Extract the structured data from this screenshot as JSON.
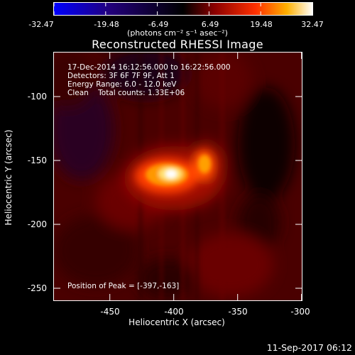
{
  "colorbar": {
    "ticks": [
      "-32.47",
      "-19.48",
      "-6.49",
      "6.49",
      "19.48",
      "32.47"
    ],
    "unit_label": "(photons cm⁻² s⁻¹ asec⁻²)",
    "colors": [
      "#0000ff",
      "#1a0080",
      "#000000",
      "#7a0000",
      "#ff2000",
      "#ff9a00",
      "#ffff80",
      "#ffffff"
    ]
  },
  "plot": {
    "title": "Reconstructed RHESSI Image",
    "xlabel": "Heliocentric X (arcsec)",
    "ylabel": "Heliocentric Y (arcsec)",
    "x_ticks": [
      "-450",
      "-400",
      "-350",
      "-300"
    ],
    "y_ticks": [
      "-100",
      "-150",
      "-200",
      "-250"
    ],
    "x_range": [
      -490,
      -295
    ],
    "y_range": [
      -265,
      -70
    ]
  },
  "info": {
    "time_range": "17-Dec-2014 16:12:56.000 to 16:22:56.000",
    "detectors": "Detectors: 3F 6F 7F 9F, Att 1",
    "energy": "Energy Range: 6.0 - 12.0 keV",
    "method": "Clean    Total counts: 1.33E+06"
  },
  "peak_text": "Position of Peak = [-397,-163]",
  "timestamp": "11-Sep-2017 06:12"
}
